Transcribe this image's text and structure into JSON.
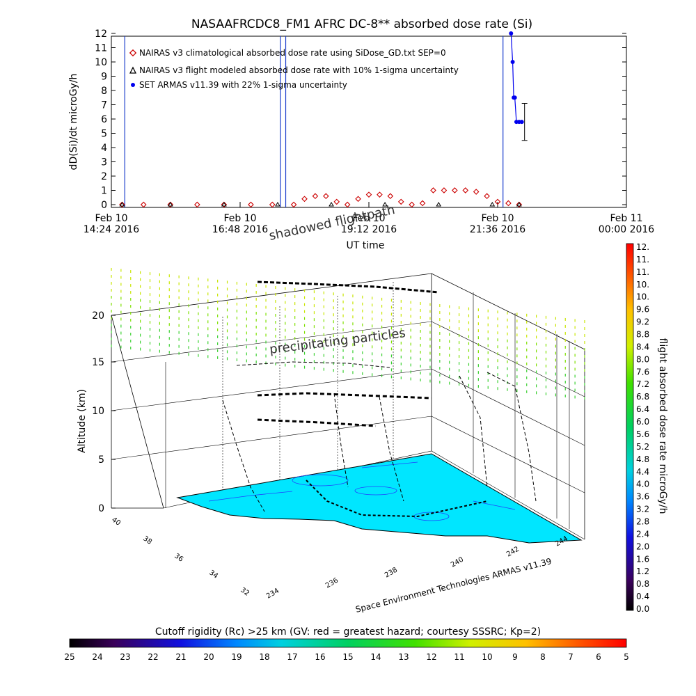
{
  "chart_data": [
    {
      "type": "scatter",
      "title": "NASAAFRCDC8_FM1 AFRC DC-8** absorbed dose rate (Si)",
      "ylabel": "dD(Si)/dt microGy/h",
      "xlabel": "UT time",
      "ylim": [
        0,
        12
      ],
      "yticks": [
        "0",
        "1",
        "2",
        "3",
        "4",
        "5",
        "6",
        "7",
        "8",
        "9",
        "10",
        "11",
        "12"
      ],
      "xticks": [
        {
          "line1": "Feb 10",
          "line2": "14:24 2016"
        },
        {
          "line1": "Feb 10",
          "line2": "16:48 2016"
        },
        {
          "line1": "Feb 10",
          "line2": "19:12 2016"
        },
        {
          "line1": "Feb 10",
          "line2": "21:36 2016"
        },
        {
          "line1": "Feb 11",
          "line2": "00:00 2016"
        }
      ],
      "x_start_hours": 14.4,
      "x_end_hours": 24.0,
      "legend": [
        "NAIRAS v3 climatological absorbed dose rate using SiDose_GD.txt SEP=0",
        "NAIRAS v3 flight modeled absorbed dose rate with 10% 1-sigma uncertainty",
        "SET ARMAS v11.39 with 22% 1-sigma uncertainty"
      ],
      "legend_placement": "top-left",
      "colors": {
        "nairas_clim": "#cc0000",
        "nairas_flight": "#000000",
        "armas": "#0000ee",
        "vertical_line": "#1a3ccc"
      },
      "series": [
        {
          "name": "NAIRAS v3 climatological absorbed dose rate using SiDose_GD.txt SEP=0",
          "x": [
            14.6,
            15.0,
            15.5,
            16.0,
            16.5,
            17.0,
            17.4,
            17.8,
            18.0,
            18.2,
            18.4,
            18.6,
            18.8,
            19.0,
            19.2,
            19.4,
            19.6,
            19.8,
            20.0,
            20.2,
            20.4,
            20.6,
            20.8,
            21.0,
            21.2,
            21.4,
            21.6,
            21.8,
            22.0
          ],
          "y": [
            0,
            0,
            0,
            0,
            0,
            0,
            0,
            0,
            0.4,
            0.6,
            0.6,
            0.2,
            0,
            0.4,
            0.7,
            0.7,
            0.6,
            0.2,
            0,
            0.1,
            1.0,
            1.0,
            1.0,
            1.0,
            0.9,
            0.6,
            0.2,
            0.1,
            0
          ]
        },
        {
          "name": "NAIRAS v3 flight modeled absorbed dose rate with 10% 1-sigma uncertainty",
          "x": [
            14.6,
            15.5,
            16.5,
            17.5,
            18.5,
            19.5,
            20.5,
            21.5,
            22.0
          ],
          "y": [
            0,
            0,
            0,
            0,
            0,
            0,
            0,
            0,
            0
          ]
        },
        {
          "name": "SET ARMAS v11.39 with 22% 1-sigma uncertainty",
          "x": [
            21.85,
            21.88,
            21.9,
            21.92,
            21.95,
            22.0,
            22.05
          ],
          "y": [
            12,
            10,
            7.5,
            7.5,
            5.8,
            5.8,
            5.8
          ],
          "error": 1.3
        }
      ],
      "vertical_lines_hours": [
        14.65,
        17.55,
        17.65,
        21.7
      ]
    },
    {
      "type": "scatter",
      "subtype": "3d-trajectory",
      "zlabel": "Altitude (km)",
      "zticks": [
        "0",
        "5",
        "10",
        "15",
        "20"
      ],
      "ylabel_ticks": [
        "40",
        "38",
        "36",
        "34",
        "32"
      ],
      "xlabel_ticks": [
        "234",
        "236",
        "238",
        "240",
        "242",
        "244"
      ],
      "xlabel": "Space Environment Technologies ARMAS v11.39",
      "annotations": [
        "shadowed flightpath",
        "precipitating particles"
      ]
    }
  ],
  "colorbar_right": {
    "label": "flight absorbed dose rate microGy/h",
    "ticks": [
      "12.",
      "11.",
      "11.",
      "10.",
      "10.",
      "9.6",
      "9.2",
      "8.8",
      "8.4",
      "8.0",
      "7.6",
      "7.2",
      "6.8",
      "6.4",
      "6.0",
      "5.6",
      "5.2",
      "4.8",
      "4.4",
      "4.0",
      "3.6",
      "3.2",
      "2.8",
      "2.4",
      "2.0",
      "1.6",
      "1.2",
      "0.8",
      "0.4",
      "0.0"
    ]
  },
  "colorbar_bottom": {
    "title": "Cutoff rigidity (Rc) >25 km (GV: red = greatest hazard; courtesy SSSRC; Kp=2)",
    "ticks": [
      "25",
      "24",
      "23",
      "22",
      "21",
      "20",
      "19",
      "18",
      "17",
      "16",
      "15",
      "14",
      "13",
      "12",
      "11",
      "10",
      "9",
      "8",
      "7",
      "6",
      "5"
    ]
  }
}
